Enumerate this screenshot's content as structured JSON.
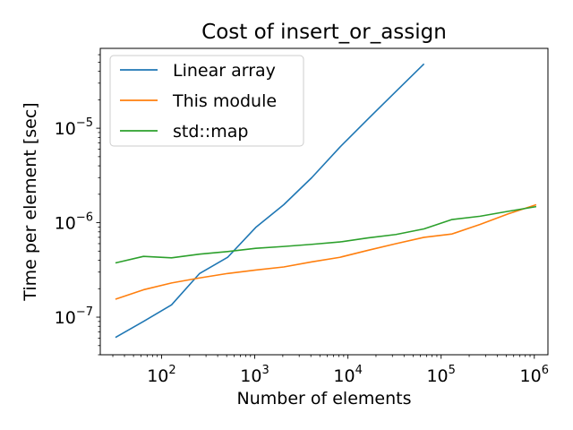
{
  "chart_data": {
    "type": "line",
    "title": "Cost of insert_or_assign",
    "xlabel": "Number of elements",
    "ylabel": "Time per element [sec]",
    "xscale": "log",
    "yscale": "log",
    "xlim": [
      22,
      1400000
    ],
    "ylim": [
      4e-08,
      7e-05
    ],
    "x_ticks": [
      {
        "value": 100,
        "base": "10",
        "exp": "2"
      },
      {
        "value": 1000,
        "base": "10",
        "exp": "3"
      },
      {
        "value": 10000,
        "base": "10",
        "exp": "4"
      },
      {
        "value": 100000,
        "base": "10",
        "exp": "5"
      },
      {
        "value": 1000000,
        "base": "10",
        "exp": "6"
      }
    ],
    "y_ticks": [
      {
        "value": 1e-07,
        "base": "10",
        "exp": "−7"
      },
      {
        "value": 1e-06,
        "base": "10",
        "exp": "−6"
      },
      {
        "value": 1e-05,
        "base": "10",
        "exp": "−5"
      }
    ],
    "legend_position": "top-left",
    "series": [
      {
        "name": "Linear array",
        "color": "#1f77b4",
        "x": [
          32,
          64,
          128,
          256,
          512,
          1024,
          2048,
          4096,
          8192,
          16384,
          32768,
          65536
        ],
        "values": [
          6.1e-08,
          9e-08,
          1.35e-07,
          2.9e-07,
          4.3e-07,
          8.9e-07,
          1.55e-06,
          3e-06,
          6.3e-06,
          1.25e-05,
          2.45e-05,
          4.8e-05
        ]
      },
      {
        "name": "This module",
        "color": "#ff7f0e",
        "x": [
          32,
          64,
          128,
          256,
          512,
          1024,
          2048,
          4096,
          8192,
          16384,
          32768,
          65536,
          131072,
          262144,
          524288,
          1048576
        ],
        "values": [
          1.55e-07,
          1.95e-07,
          2.3e-07,
          2.6e-07,
          2.9e-07,
          3.15e-07,
          3.4e-07,
          3.85e-07,
          4.3e-07,
          5.1e-07,
          6e-07,
          7e-07,
          7.6e-07,
          9.6e-07,
          1.24e-06,
          1.55e-06
        ]
      },
      {
        "name": "std::map",
        "color": "#2ca02c",
        "x": [
          32,
          64,
          128,
          256,
          512,
          1024,
          2048,
          4096,
          8192,
          16384,
          32768,
          65536,
          131072,
          262144,
          524288,
          1048576
        ],
        "values": [
          3.75e-07,
          4.4e-07,
          4.25e-07,
          4.65e-07,
          4.95e-07,
          5.35e-07,
          5.6e-07,
          5.9e-07,
          6.25e-07,
          6.9e-07,
          7.5e-07,
          8.6e-07,
          1.08e-06,
          1.17e-06,
          1.32e-06,
          1.48e-06
        ]
      }
    ]
  }
}
